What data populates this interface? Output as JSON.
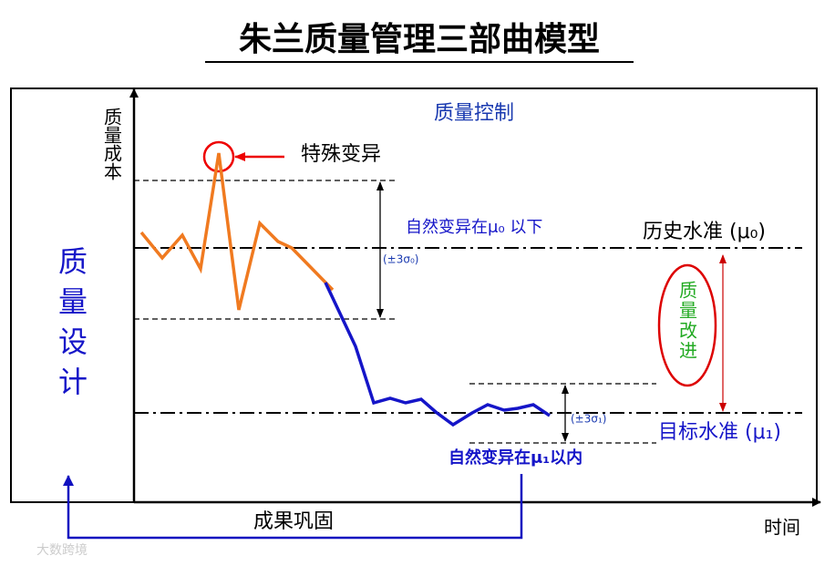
{
  "title": "朱兰质量管理三部曲模型",
  "y_axis_label": "质量成本",
  "x_axis_label": "时间",
  "sections": {
    "design": "质量设计",
    "control": "质量控制",
    "improvement": "质量改进"
  },
  "annotations": {
    "special_variation": "特殊变异",
    "natural_variation_0": "自然变异在μ₀ 以下",
    "sigma_0": "(±3σ₀)",
    "historical_level": "历史水准 (μ₀)",
    "target_level": "目标水准 (μ₁)",
    "sigma_1": "(±3σ₁)",
    "natural_variation_1": "自然变异在μ₁以内",
    "consolidation": "成果巩固"
  },
  "watermark": "大数跨境"
}
